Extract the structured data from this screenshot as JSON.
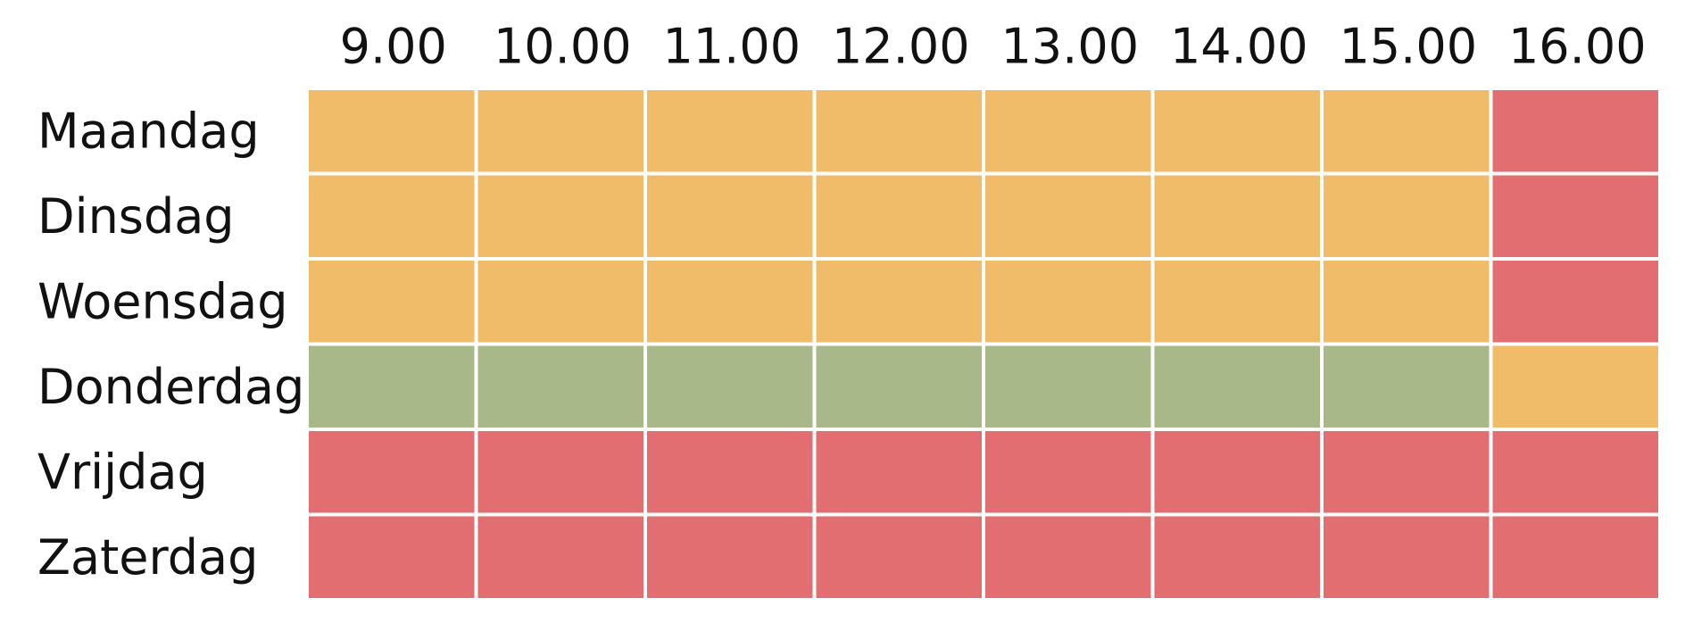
{
  "table": {
    "columns": [
      "9.00",
      "10.00",
      "11.00",
      "12.00",
      "13.00",
      "14.00",
      "15.00",
      "16.00"
    ],
    "rows": [
      "Maandag",
      "Dinsdag",
      "Woensdag",
      "Donderdag",
      "Vrijdag",
      "Zaterdag"
    ],
    "cells": [
      [
        "#f0bc6a",
        "#f0bc6a",
        "#f0bc6a",
        "#f0bc6a",
        "#f0bc6a",
        "#f0bc6a",
        "#f0bc6a",
        "#e26e72"
      ],
      [
        "#f0bc6a",
        "#f0bc6a",
        "#f0bc6a",
        "#f0bc6a",
        "#f0bc6a",
        "#f0bc6a",
        "#f0bc6a",
        "#e26e72"
      ],
      [
        "#f0bc6a",
        "#f0bc6a",
        "#f0bc6a",
        "#f0bc6a",
        "#f0bc6a",
        "#f0bc6a",
        "#f0bc6a",
        "#e26e72"
      ],
      [
        "#a8b888",
        "#a8b888",
        "#a8b888",
        "#a8b888",
        "#a8b888",
        "#a8b888",
        "#a8b888",
        "#f0bc6a"
      ],
      [
        "#e26e72",
        "#e26e72",
        "#e26e72",
        "#e26e72",
        "#e26e72",
        "#e26e72",
        "#e26e72",
        "#e26e72"
      ],
      [
        "#e26e72",
        "#e26e72",
        "#e26e72",
        "#e26e72",
        "#e26e72",
        "#e26e72",
        "#e26e72",
        "#e26e72"
      ]
    ]
  }
}
